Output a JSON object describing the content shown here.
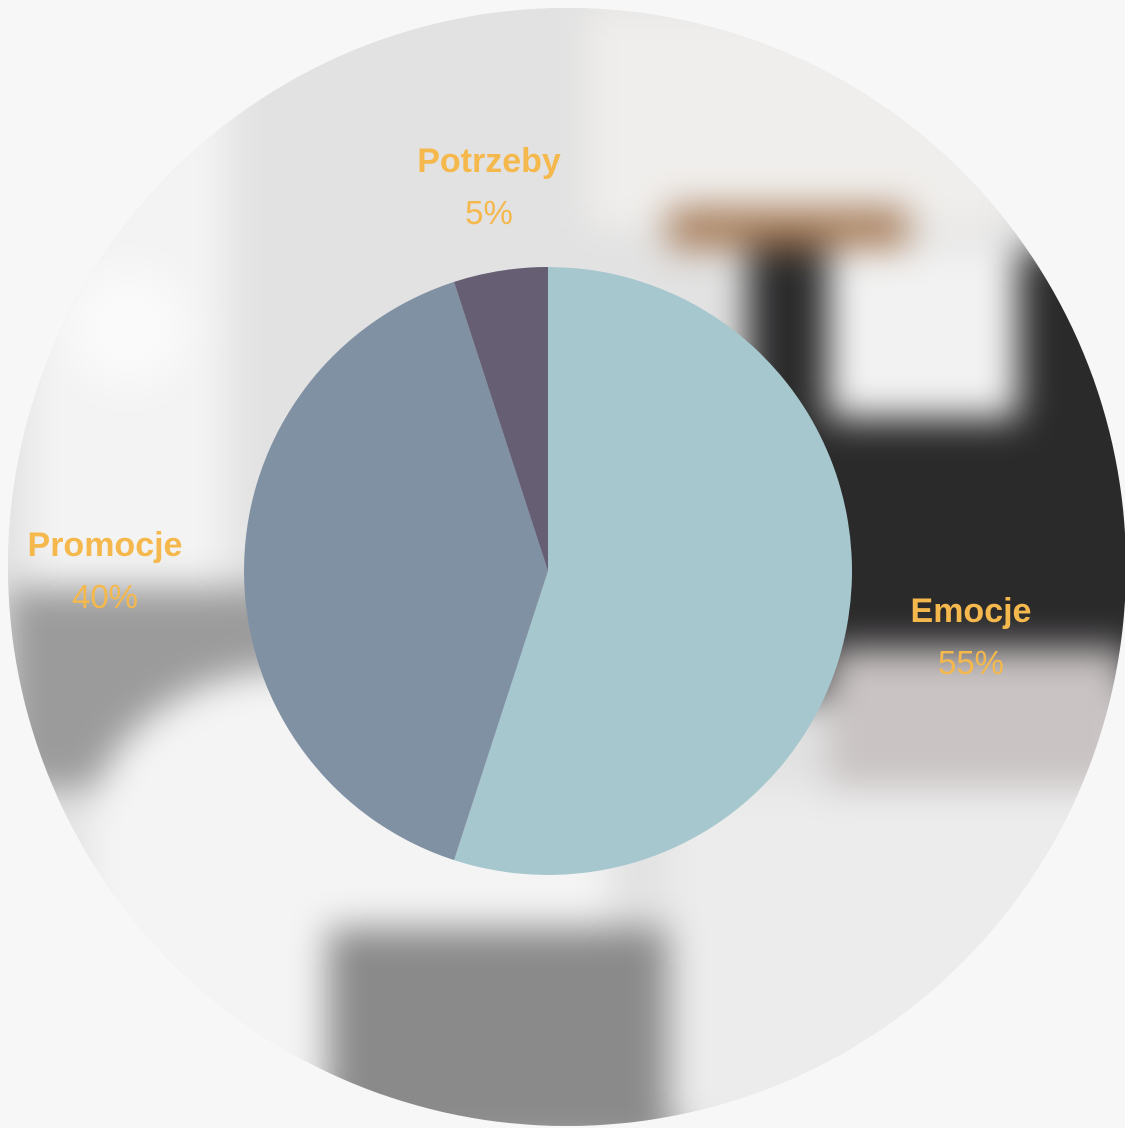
{
  "colors": {
    "label_text": "#f5b84c",
    "background": "#f7f7f7"
  },
  "chart_data": {
    "type": "pie",
    "title": "",
    "start_angle_deg": 0,
    "direction": "clockwise",
    "slices": [
      {
        "label": "Emocje",
        "value": 55,
        "value_label": "55%",
        "color": "#a6c7ce"
      },
      {
        "label": "Promocje",
        "value": 40,
        "value_label": "40%",
        "color": "#8091a4"
      },
      {
        "label": "Potrzeby",
        "value": 5,
        "value_label": "5%",
        "color": "#665f73"
      }
    ]
  }
}
